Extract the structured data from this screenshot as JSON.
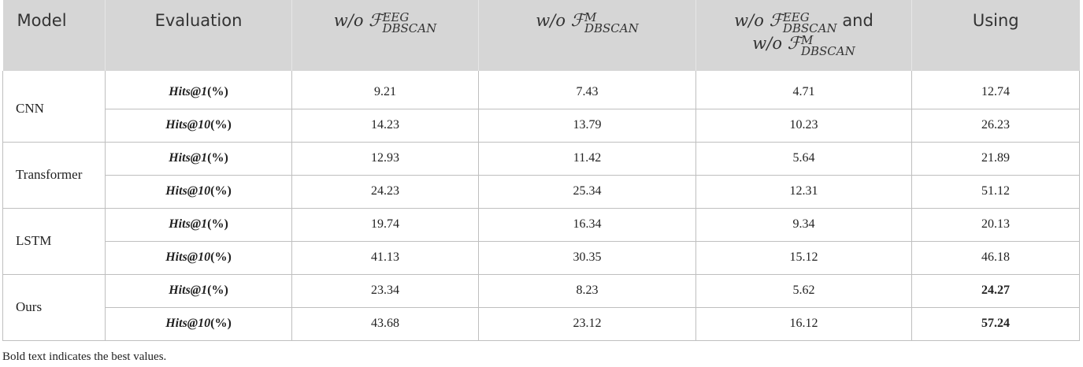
{
  "header": {
    "model": "Model",
    "evaluation": "Evaluation",
    "wo_prefix": "w/o",
    "calligraphic_f": "ℱ",
    "col_eeg_sup": "EEG",
    "col_m_sup": "M",
    "dbscan_sub": "DBSCAN",
    "and": "and",
    "using": "Using"
  },
  "metrics": {
    "hits1_name": "Hits@1",
    "hits10_name": "Hits@10",
    "pct": "(%)"
  },
  "rows": [
    {
      "model": "CNN",
      "h1": [
        "9.21",
        "7.43",
        "4.71",
        "12.74"
      ],
      "h10": [
        "14.23",
        "13.79",
        "10.23",
        "26.23"
      ]
    },
    {
      "model": "Transformer",
      "h1": [
        "12.93",
        "11.42",
        "5.64",
        "21.89"
      ],
      "h10": [
        "24.23",
        "25.34",
        "12.31",
        "51.12"
      ]
    },
    {
      "model": "LSTM",
      "h1": [
        "19.74",
        "16.34",
        "9.34",
        "20.13"
      ],
      "h10": [
        "41.13",
        "30.35",
        "15.12",
        "46.18"
      ]
    },
    {
      "model": "Ours",
      "h1": [
        "23.34",
        "8.23",
        "5.62",
        "24.27"
      ],
      "h10": [
        "43.68",
        "23.12",
        "16.12",
        "57.24"
      ]
    }
  ],
  "caption": "Bold text indicates the best values."
}
